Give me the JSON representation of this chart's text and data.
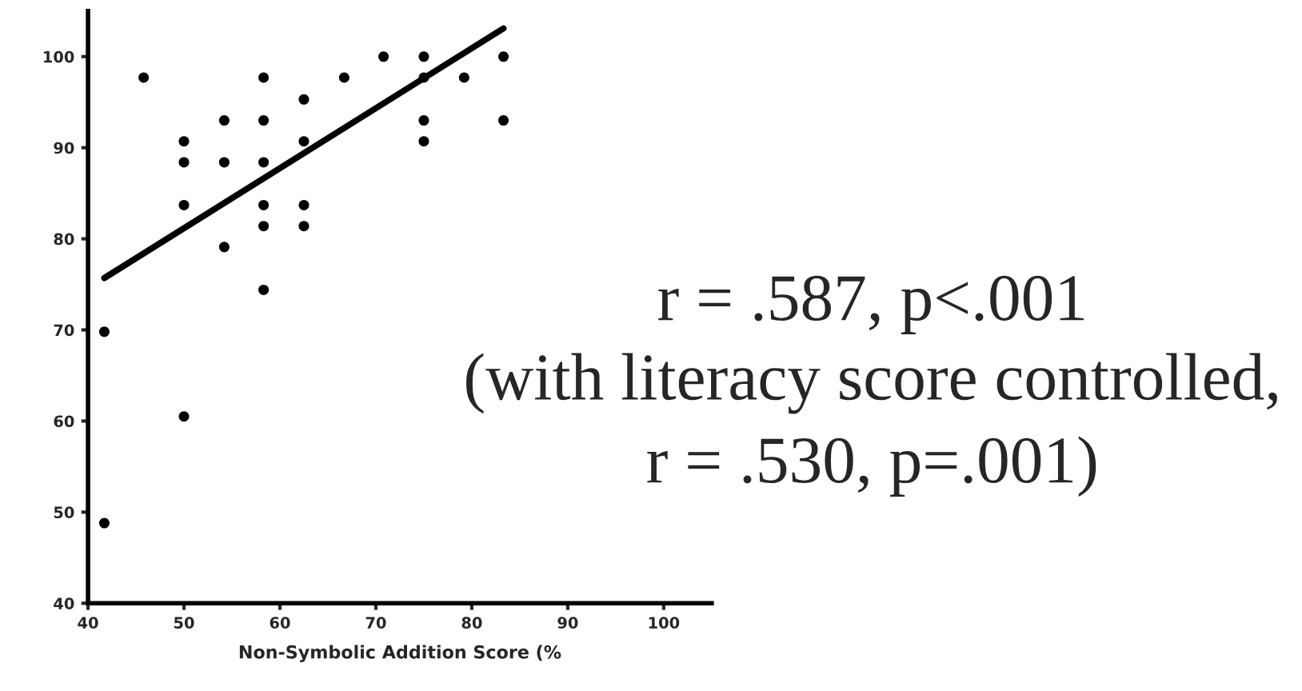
{
  "chart_data": {
    "type": "scatter",
    "xlabel": "Non-Symbolic Addition Score (%",
    "series": [
      {
        "color": "#000000",
        "marker": "circle",
        "x": [
          41.7,
          41.7,
          45.8,
          50,
          50,
          50,
          50,
          54.2,
          54.2,
          54.2,
          58.3,
          58.3,
          58.3,
          58.3,
          58.3,
          58.3,
          62.5,
          62.5,
          62.5,
          62.5,
          66.7,
          70.8,
          75,
          75,
          75,
          75,
          79.2,
          83.3,
          83.3
        ],
        "values": [
          69.8,
          48.8,
          97.7,
          90.7,
          88.4,
          83.7,
          60.5,
          93,
          88.4,
          79.1,
          97.7,
          93,
          88.4,
          83.7,
          81.4,
          74.4,
          95.3,
          90.7,
          83.7,
          81.4,
          97.7,
          100,
          100,
          97.7,
          93,
          90.7,
          97.7,
          100,
          93
        ]
      },
      {
        "type": "line",
        "color": "#000000",
        "x": [
          41.7,
          83.3
        ],
        "values": [
          75.7,
          103.1
        ]
      }
    ],
    "xlim": [
      40,
      105
    ],
    "ylim": [
      40,
      105
    ],
    "xticks": [
      40,
      50,
      60,
      70,
      80,
      90,
      100
    ],
    "yticks": [
      40,
      50,
      60,
      70,
      80,
      90,
      100
    ],
    "grid": false,
    "legend": false,
    "annotations": [
      "r = .587, p<.001",
      "(with literacy score controlled,",
      "r = .530, p=.001)"
    ]
  }
}
